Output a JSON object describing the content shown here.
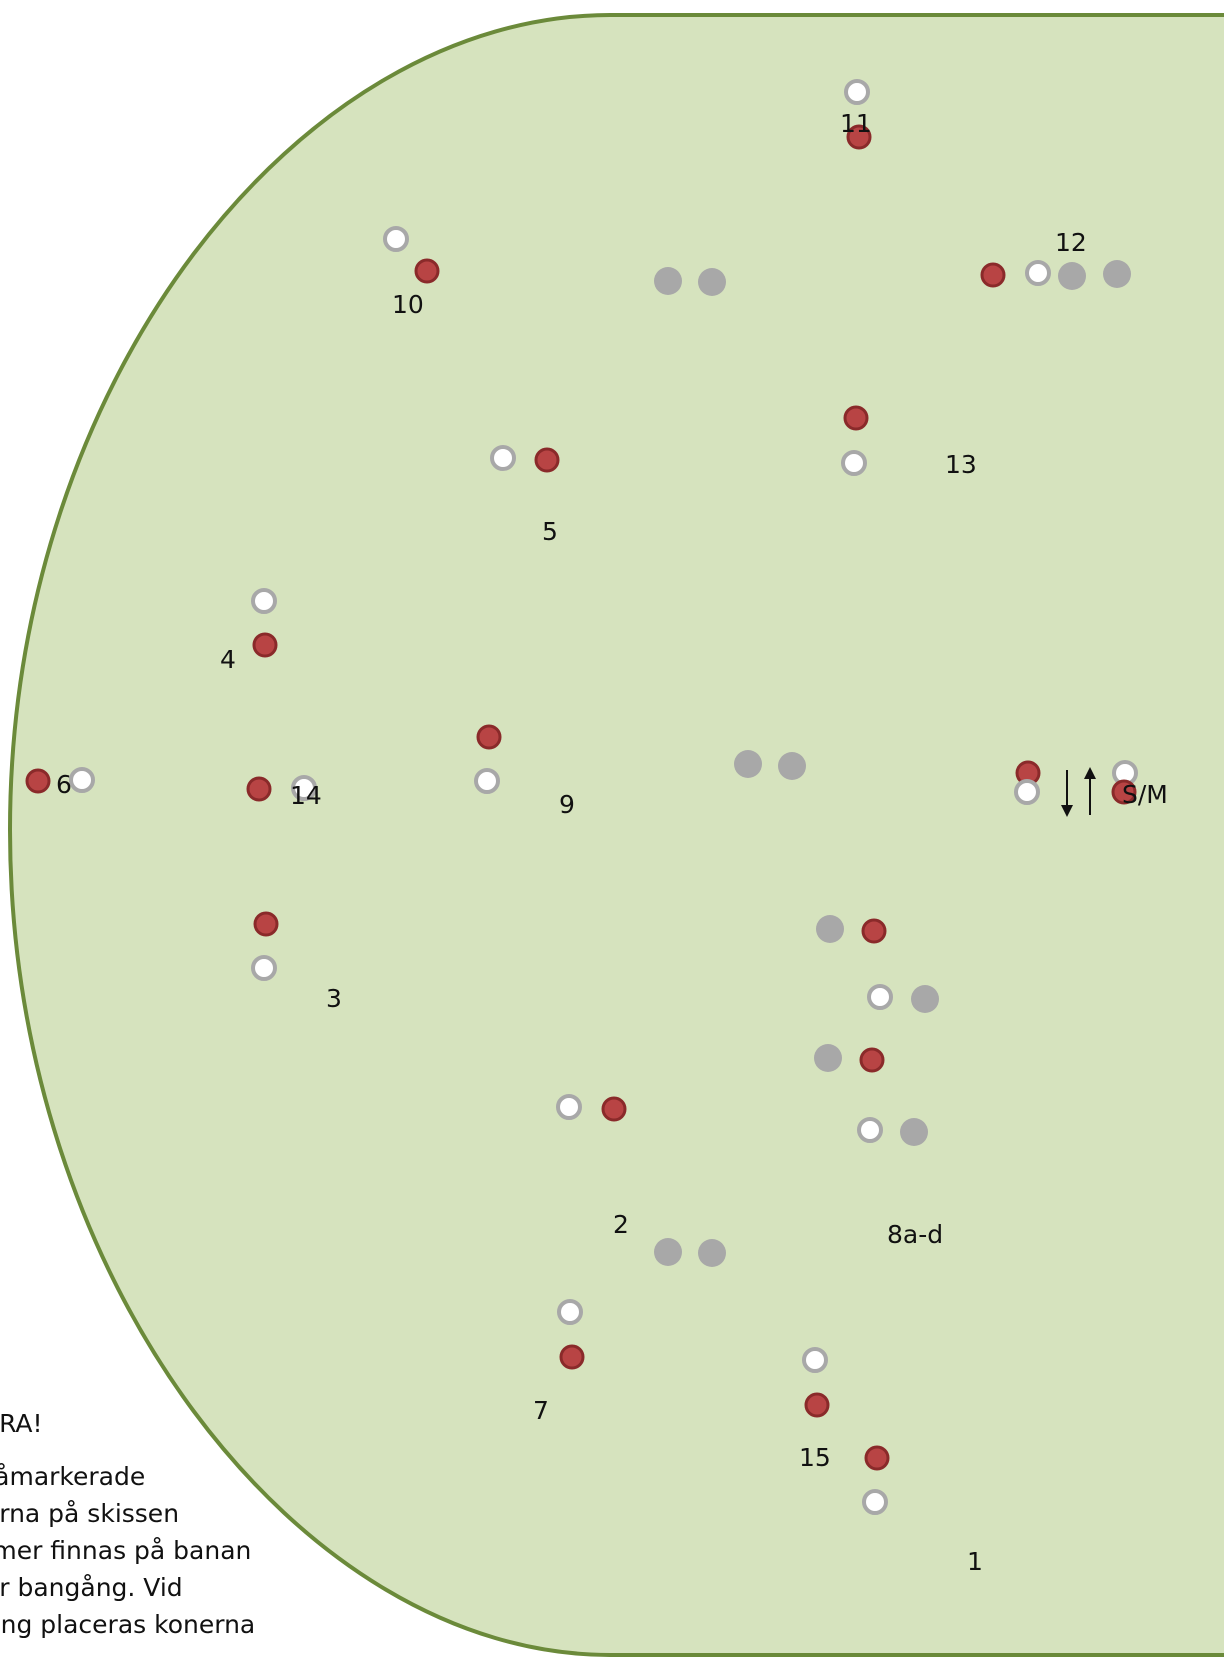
{
  "course": {
    "colors": {
      "field": "#d6e3be",
      "border": "#6b8a3a",
      "red_cone": "#b84444",
      "red_cone_ring": "#8a2a2a",
      "white_cone_ring": "#a8a8a8",
      "grey_cone": "#a8a8a8",
      "arrow": "#111111"
    },
    "stations": [
      {
        "id": "1",
        "label": "1"
      },
      {
        "id": "2",
        "label": "2"
      },
      {
        "id": "3",
        "label": "3"
      },
      {
        "id": "4",
        "label": "4"
      },
      {
        "id": "5",
        "label": "5"
      },
      {
        "id": "6",
        "label": "6"
      },
      {
        "id": "7",
        "label": "7"
      },
      {
        "id": "8",
        "label": "8a-d"
      },
      {
        "id": "9",
        "label": "9"
      },
      {
        "id": "10",
        "label": "10"
      },
      {
        "id": "11",
        "label": "11"
      },
      {
        "id": "12",
        "label": "12"
      },
      {
        "id": "13",
        "label": "13"
      },
      {
        "id": "14",
        "label": "14"
      },
      {
        "id": "15",
        "label": "15"
      },
      {
        "id": "sm",
        "label": "S/M"
      }
    ],
    "legend_icons": [
      "red-cone-icon",
      "white-cone-icon",
      "grey-cone-icon",
      "arrow-down-icon",
      "arrow-up-icon"
    ]
  },
  "note": {
    "heading": "TERA!",
    "lines": [
      "gråmarkerade",
      "nerna på skissen",
      "mmer finnas på banan",
      "der bangång. Vid",
      "rning placeras konerna"
    ]
  }
}
